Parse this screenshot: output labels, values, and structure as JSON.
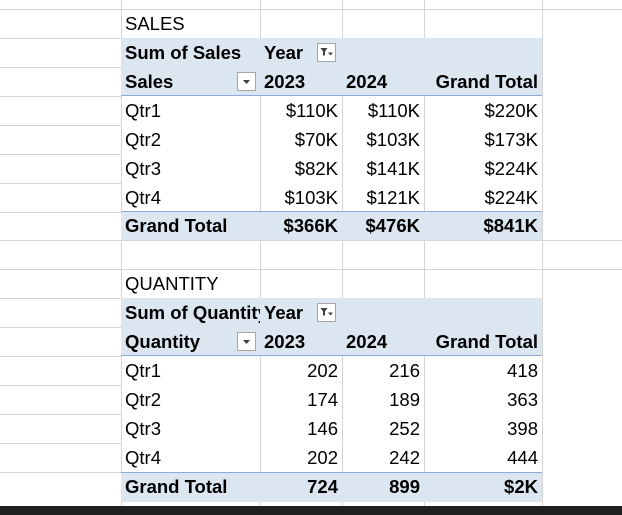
{
  "sales_pivot": {
    "title": "SALES",
    "measure_label": "Sum of Sales",
    "column_field": "Year",
    "row_field": "Sales",
    "headers": [
      "2023",
      "2024",
      "Grand Total"
    ],
    "rows": [
      {
        "label": "Qtr1",
        "values": [
          "$110K",
          "$110K",
          "$220K"
        ]
      },
      {
        "label": "Qtr2",
        "values": [
          "$70K",
          "$103K",
          "$173K"
        ]
      },
      {
        "label": "Qtr3",
        "values": [
          "$82K",
          "$141K",
          "$224K"
        ]
      },
      {
        "label": "Qtr4",
        "values": [
          "$103K",
          "$121K",
          "$224K"
        ]
      }
    ],
    "total": {
      "label": "Grand Total",
      "values": [
        "$366K",
        "$476K",
        "$841K"
      ]
    }
  },
  "quantity_pivot": {
    "title": "QUANTITY",
    "measure_label": "Sum of Quantity",
    "column_field": "Year",
    "row_field": "Quantity",
    "headers": [
      "2023",
      "2024",
      "Grand Total"
    ],
    "rows": [
      {
        "label": "Qtr1",
        "values": [
          "202",
          "216",
          "418"
        ]
      },
      {
        "label": "Qtr2",
        "values": [
          "174",
          "189",
          "363"
        ]
      },
      {
        "label": "Qtr3",
        "values": [
          "146",
          "252",
          "398"
        ]
      },
      {
        "label": "Qtr4",
        "values": [
          "202",
          "242",
          "444"
        ]
      }
    ],
    "total": {
      "label": "Grand Total",
      "values": [
        "724",
        "899",
        "$2K"
      ]
    }
  },
  "colors": {
    "pivot_band": "#dce6f1",
    "pivot_rule": "#8eaadb",
    "gridline": "#d4d4d4"
  },
  "icons": {
    "column_filter": "filter-dropdown-icon",
    "row_dropdown": "chevron-down-icon"
  }
}
